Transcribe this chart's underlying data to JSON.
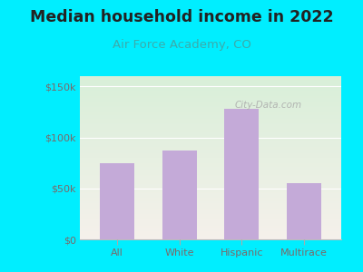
{
  "title": "Median household income in 2022",
  "subtitle": "Air Force Academy, CO",
  "categories": [
    "All",
    "White",
    "Hispanic",
    "Multirace"
  ],
  "values": [
    75000,
    87000,
    128000,
    55000
  ],
  "bar_color": "#c4aad8",
  "background_outer": "#00eeff",
  "background_inner_top_left": "#d8efd8",
  "background_inner_right": "#f5f0eb",
  "title_color": "#222222",
  "subtitle_color": "#3aacac",
  "axis_label_color": "#7a6a6a",
  "ylim": [
    0,
    160000
  ],
  "yticks": [
    0,
    50000,
    100000,
    150000
  ],
  "ytick_labels": [
    "$0",
    "$50k",
    "$100k",
    "$150k"
  ],
  "watermark": "City-Data.com",
  "title_fontsize": 12.5,
  "subtitle_fontsize": 9.5,
  "tick_fontsize": 8
}
